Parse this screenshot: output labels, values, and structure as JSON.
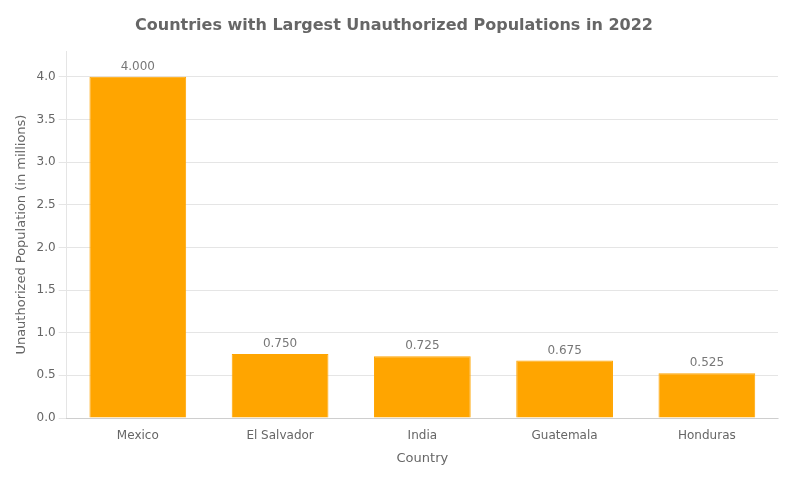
{
  "chart_data": {
    "type": "bar",
    "title": "Countries with Largest Unauthorized Populations in 2022",
    "x_label": "Country",
    "y_label": "Unauthorized Population (in millions)",
    "categories": [
      "Mexico",
      "El Salvador",
      "India",
      "Guatemala",
      "Honduras"
    ],
    "values": [
      4.0,
      0.75,
      0.725,
      0.675,
      0.525
    ],
    "value_labels": [
      "4.000",
      "0.750",
      "0.725",
      "0.675",
      "0.525"
    ],
    "color": "#FFA500",
    "ylim": [
      0,
      4.3
    ],
    "yticks": [
      {
        "value": 0,
        "label": "0.0"
      },
      0.5,
      {
        "value": 1,
        "label": "1.0"
      },
      1.5,
      {
        "value": 2,
        "label": "2.0"
      },
      2.5,
      {
        "value": 3,
        "label": "3.0"
      },
      3.5,
      {
        "value": 4,
        "label": "4.0"
      }
    ],
    "grid": true,
    "data_labels": true
  }
}
